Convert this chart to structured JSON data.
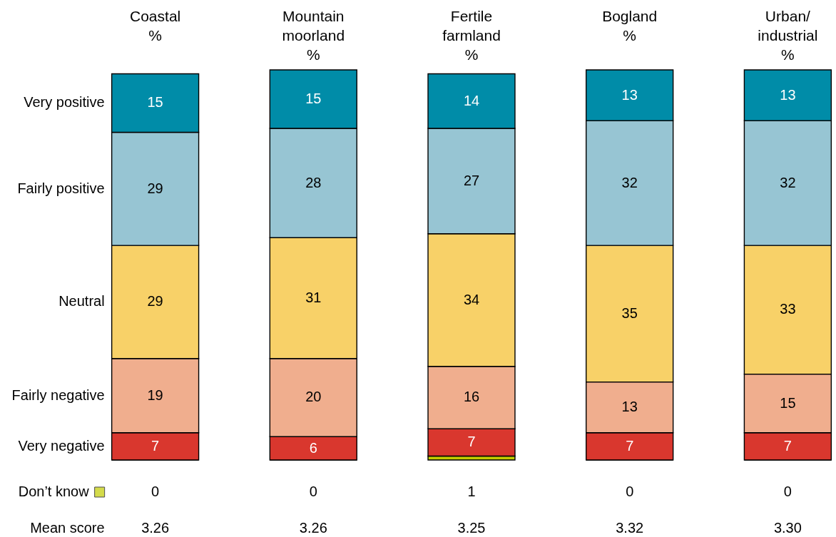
{
  "chart_data": {
    "type": "bar",
    "stacked": true,
    "tick_labels": "x",
    "data_labels": true,
    "categories": [
      "Coastal %",
      "Mountain moorland %",
      "Fertile farmland %",
      "Bogland %",
      "Urban/ industrial %"
    ],
    "series": [
      {
        "name": "Don’t know",
        "color": "#c2cc00",
        "values": [
          0,
          0,
          1,
          0,
          0
        ]
      },
      {
        "name": "Very negative",
        "color": "#d9372e",
        "values": [
          7,
          6,
          7,
          7,
          7
        ]
      },
      {
        "name": "Fairly negative",
        "color": "#f0ae8e",
        "values": [
          19,
          20,
          16,
          13,
          15
        ]
      },
      {
        "name": "Neutral",
        "color": "#f8d168",
        "values": [
          29,
          31,
          34,
          35,
          33
        ]
      },
      {
        "name": "Fairly positive",
        "color": "#97c5d3",
        "values": [
          29,
          28,
          27,
          32,
          32
        ]
      },
      {
        "name": "Very positive",
        "color": "#008ca8",
        "values": [
          15,
          15,
          14,
          13,
          13
        ]
      }
    ],
    "annotations": [
      "Mean score",
      "3.26",
      "3.26",
      "3.25",
      "3.32",
      "3.30"
    ]
  }
}
